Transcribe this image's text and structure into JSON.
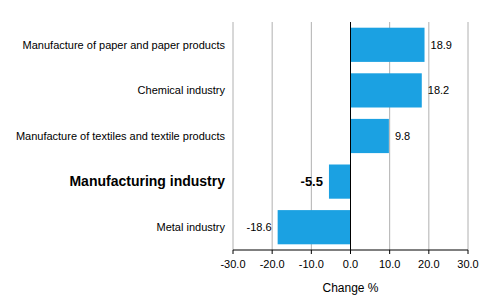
{
  "chart_data": {
    "type": "bar",
    "orientation": "horizontal",
    "categories": [
      "Manufacture of paper and paper products",
      "Chemical industry",
      "Manufacture of textiles and textile products",
      "Manufacturing industry",
      "Metal industry"
    ],
    "values": [
      18.9,
      18.2,
      9.8,
      -5.5,
      -18.6
    ],
    "color": "#1ba1e2",
    "xlabel": "Change %",
    "xlim": [
      -30,
      30
    ],
    "xticks": [
      {
        "value": -30,
        "label": "-30.0"
      },
      {
        "value": -20,
        "label": "-20.0"
      },
      {
        "value": -10,
        "label": "-10.0"
      },
      {
        "value": 0,
        "label": "0.0"
      },
      {
        "value": 10,
        "label": "10.0"
      },
      {
        "value": 20,
        "label": "20.0"
      },
      {
        "value": 30,
        "label": "30.0"
      }
    ],
    "grid": true,
    "data_labels": true
  }
}
